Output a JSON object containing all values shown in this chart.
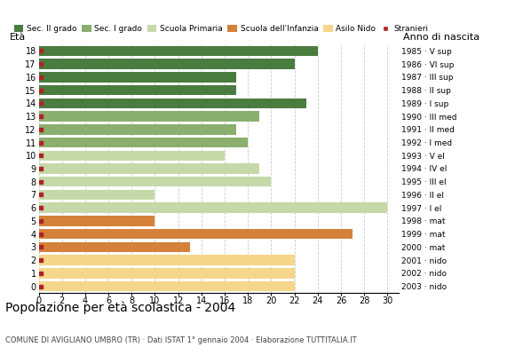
{
  "title": "Popolazione per età scolastica - 2004",
  "subtitle": "COMUNE DI AVIGLIANO UMBRO (TR) · Dati ISTAT 1° gennaio 2004 · Elaborazione TUTTITALIA.IT",
  "ylabel": "Età",
  "xlabel_right": "Anno di nascita",
  "ages": [
    18,
    17,
    16,
    15,
    14,
    13,
    12,
    11,
    10,
    9,
    8,
    7,
    6,
    5,
    4,
    3,
    2,
    1,
    0
  ],
  "years": [
    "1985 · V sup",
    "1986 · VI sup",
    "1987 · III sup",
    "1988 · II sup",
    "1989 · I sup",
    "1990 · III med",
    "1991 · II med",
    "1992 · I med",
    "1993 · V el",
    "1994 · IV el",
    "1995 · III el",
    "1996 · II el",
    "1997 · I el",
    "1998 · mat",
    "1999 · mat",
    "2000 · mat",
    "2001 · nido",
    "2002 · nido",
    "2003 · nido"
  ],
  "bar_values": [
    24,
    22,
    17,
    17,
    23,
    19,
    17,
    18,
    16,
    19,
    20,
    10,
    30,
    10,
    27,
    13,
    22,
    22,
    22
  ],
  "bar_colors": [
    "#4a7c3f",
    "#4a7c3f",
    "#4a7c3f",
    "#4a7c3f",
    "#4a7c3f",
    "#8aaf6e",
    "#8aaf6e",
    "#8aaf6e",
    "#c5d9a8",
    "#c5d9a8",
    "#c5d9a8",
    "#c5d9a8",
    "#c5d9a8",
    "#d4813a",
    "#d4813a",
    "#d4813a",
    "#f5d68a",
    "#f5d68a",
    "#f5d68a"
  ],
  "stranieri_positions": [
    0,
    1,
    2,
    3,
    4,
    5,
    6,
    7,
    8,
    9,
    10,
    11,
    12,
    13,
    14,
    15,
    16,
    17,
    18
  ],
  "stranieri_color": "#b22222",
  "legend_labels": [
    "Sec. II grado",
    "Sec. I grado",
    "Scuola Primaria",
    "Scuola dell'Infanzia",
    "Asilo Nido",
    "Stranieri"
  ],
  "legend_colors": [
    "#4a7c3f",
    "#8aaf6e",
    "#c5d9a8",
    "#d4813a",
    "#f5d68a",
    "#b22222"
  ],
  "xlim": [
    0,
    31
  ],
  "xticks": [
    0,
    2,
    4,
    6,
    8,
    10,
    12,
    14,
    16,
    18,
    20,
    22,
    24,
    26,
    28,
    30
  ],
  "bg_color": "#ffffff",
  "grid_color": "#cccccc",
  "bar_height": 0.78
}
